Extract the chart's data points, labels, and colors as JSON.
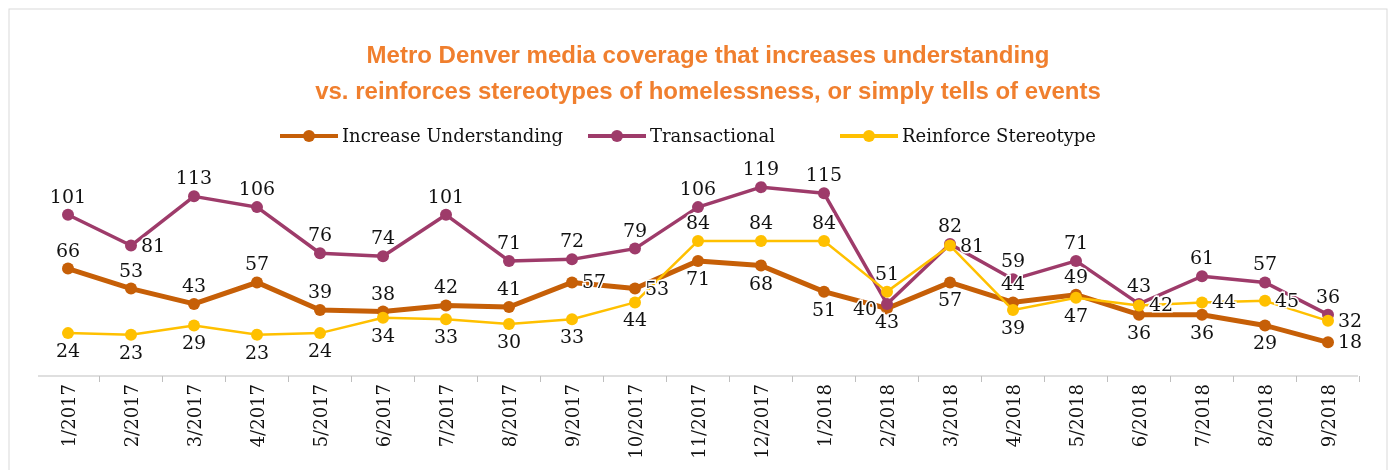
{
  "chart_data": {
    "type": "line",
    "title": "Metro Denver media coverage that increases understanding\nvs.  reinforces stereotypes of  homelessness, or simply tells of events",
    "categories": [
      "1/2017",
      "2/2017",
      "3/2017",
      "4/2017",
      "5/2017",
      "6/2017",
      "7/2017",
      "8/2017",
      "9/2017",
      "10/2017",
      "11/2017",
      "12/2017",
      "1/2018",
      "2/2018",
      "3/2018",
      "4/2018",
      "5/2018",
      "6/2018",
      "7/2018",
      "8/2018",
      "9/2018"
    ],
    "series": [
      {
        "name": "Increase Understanding",
        "color": "#c65f07",
        "values": [
          66,
          53,
          43,
          57,
          39,
          38,
          42,
          41,
          57,
          53,
          71,
          68,
          51,
          40,
          57,
          44,
          49,
          36,
          36,
          29,
          18
        ]
      },
      {
        "name": "Transactional",
        "color": "#9e3b6a",
        "values": [
          101,
          81,
          113,
          106,
          76,
          74,
          101,
          71,
          72,
          79,
          106,
          119,
          115,
          43,
          82,
          59,
          71,
          43,
          61,
          57,
          36
        ]
      },
      {
        "name": "Reinforce Stereotype",
        "color": "#ffc000",
        "values": [
          24,
          23,
          29,
          23,
          24,
          34,
          33,
          30,
          33,
          44,
          84,
          84,
          84,
          51,
          81,
          39,
          47,
          42,
          44,
          45,
          32
        ]
      }
    ],
    "data_labels": true,
    "legend": "top",
    "marker": "circle"
  }
}
